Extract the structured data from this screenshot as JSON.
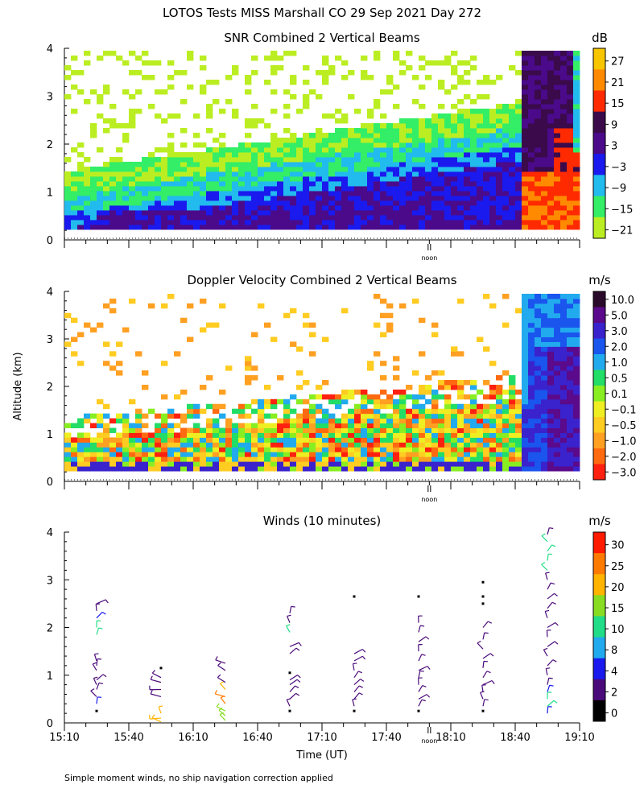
{
  "main_title": "LOTOS Tests MISS Marshall CO  29 Sep 2021 Day 272",
  "footer_note": "Simple moment winds, no ship navigation correction applied",
  "noon_label": "noon",
  "chart_data": [
    {
      "type": "heatmap",
      "title": "SNR Combined 2 Vertical Beams",
      "unit_label": "dB",
      "ylabel": "",
      "ylim": [
        0,
        4
      ],
      "y_ticks": [
        "0",
        "1",
        "2",
        "3",
        "4"
      ],
      "colorbar": {
        "labels": [
          "27",
          "21",
          "15",
          "9",
          "3",
          "−3",
          "−9",
          "−15",
          "−21"
        ],
        "colors": [
          "#f7c600",
          "#ff8a00",
          "#ff2a00",
          "#3a0a4a",
          "#4a0a8a",
          "#1a1aee",
          "#22bbee",
          "#33ee66",
          "#bbee22"
        ]
      },
      "field": "snr"
    },
    {
      "type": "heatmap",
      "title": "Doppler Velocity Combined 2 Vertical Beams",
      "unit_label": "m/s",
      "ylabel": "Altitude (km)",
      "ylim": [
        0,
        4
      ],
      "y_ticks": [
        "0",
        "1",
        "2",
        "3",
        "4"
      ],
      "colorbar": {
        "labels": [
          "10.0",
          "5.0",
          "3.0",
          "2.0",
          "1.0",
          "0.5",
          "0.1",
          "−0.1",
          "−0.5",
          "−1.0",
          "−2.0",
          "−3.0"
        ],
        "colors": [
          "#2a0a2a",
          "#5a0a8a",
          "#3a22cc",
          "#1a55ee",
          "#22aaee",
          "#22dd66",
          "#88ee22",
          "#eeee22",
          "#ffcc22",
          "#ffa022",
          "#ff6a10",
          "#ff2010"
        ]
      },
      "field": "velocity"
    },
    {
      "type": "scatter",
      "title": "Winds (10 minutes)",
      "unit_label": "m/s",
      "xlabel": "Time (UT)",
      "ylim": [
        0,
        4
      ],
      "y_ticks": [
        "0",
        "1",
        "2",
        "3",
        "4"
      ],
      "x_ticks": [
        "15:10",
        "15:40",
        "16:10",
        "16:40",
        "17:10",
        "17:40",
        "18:10",
        "18:40",
        "19:10"
      ],
      "x_range_minutes": [
        910,
        1150
      ],
      "noon_minute": 1080,
      "colorbar": {
        "labels": [
          "30",
          "25",
          "20",
          "15",
          "10",
          "8",
          "4",
          "2",
          "0"
        ],
        "colors": [
          "#ff1a00",
          "#ff7a00",
          "#ffb400",
          "#88dd22",
          "#22dd88",
          "#22aaee",
          "#1a1aee",
          "#4a0a7a",
          "#000000"
        ]
      },
      "profile_times": [
        "15:25",
        "15:55",
        "16:25",
        "16:55",
        "17:25",
        "17:55",
        "18:25",
        "18:55"
      ],
      "profiles": [
        {
          "time_min": 925,
          "points": [
            {
              "alt": 0.25,
              "speed": 0
            },
            {
              "alt": 0.4,
              "speed": 4
            },
            {
              "alt": 0.55,
              "speed": 3
            },
            {
              "alt": 0.7,
              "speed": 3
            },
            {
              "alt": 0.8,
              "speed": 3
            },
            {
              "alt": 0.9,
              "speed": 3
            },
            {
              "alt": 1.1,
              "speed": 3
            },
            {
              "alt": 1.2,
              "speed": 3
            },
            {
              "alt": 1.3,
              "speed": 3
            },
            {
              "alt": 1.85,
              "speed": 10
            },
            {
              "alt": 2.0,
              "speed": 10
            },
            {
              "alt": 2.2,
              "speed": 4
            },
            {
              "alt": 2.35,
              "speed": 3
            },
            {
              "alt": 2.5,
              "speed": 3
            }
          ]
        },
        {
          "time_min": 955,
          "points": [
            {
              "alt": 0.02,
              "speed": 22
            },
            {
              "alt": 0.1,
              "speed": 22
            },
            {
              "alt": 0.2,
              "speed": 22
            },
            {
              "alt": 0.55,
              "speed": 3
            },
            {
              "alt": 0.7,
              "speed": 3
            },
            {
              "alt": 0.85,
              "speed": 3
            },
            {
              "alt": 0.95,
              "speed": 3
            },
            {
              "alt": 1.15,
              "speed": 0
            }
          ]
        },
        {
          "time_min": 985,
          "points": [
            {
              "alt": 0.05,
              "speed": 15
            },
            {
              "alt": 0.15,
              "speed": 15
            },
            {
              "alt": 0.25,
              "speed": 15
            },
            {
              "alt": 0.4,
              "speed": 25
            },
            {
              "alt": 0.55,
              "speed": 25
            },
            {
              "alt": 0.7,
              "speed": 22
            },
            {
              "alt": 0.85,
              "speed": 3
            },
            {
              "alt": 1.1,
              "speed": 3
            },
            {
              "alt": 1.25,
              "speed": 3
            }
          ]
        },
        {
          "time_min": 1015,
          "points": [
            {
              "alt": 0.25,
              "speed": 0
            },
            {
              "alt": 0.35,
              "speed": 3
            },
            {
              "alt": 0.5,
              "speed": 3
            },
            {
              "alt": 0.65,
              "speed": 3
            },
            {
              "alt": 0.8,
              "speed": 3
            },
            {
              "alt": 0.9,
              "speed": 3
            },
            {
              "alt": 1.05,
              "speed": 0
            },
            {
              "alt": 1.45,
              "speed": 3
            },
            {
              "alt": 1.6,
              "speed": 3
            },
            {
              "alt": 1.9,
              "speed": 10
            },
            {
              "alt": 2.1,
              "speed": 3
            },
            {
              "alt": 2.3,
              "speed": 3
            }
          ]
        },
        {
          "time_min": 1045,
          "points": [
            {
              "alt": 0.25,
              "speed": 0
            },
            {
              "alt": 0.35,
              "speed": 3
            },
            {
              "alt": 0.5,
              "speed": 3
            },
            {
              "alt": 0.65,
              "speed": 3
            },
            {
              "alt": 0.8,
              "speed": 3
            },
            {
              "alt": 0.95,
              "speed": 3
            },
            {
              "alt": 1.1,
              "speed": 3
            },
            {
              "alt": 1.3,
              "speed": 3
            },
            {
              "alt": 1.45,
              "speed": 3
            },
            {
              "alt": 2.65,
              "speed": 0
            }
          ]
        },
        {
          "time_min": 1075,
          "points": [
            {
              "alt": 0.25,
              "speed": 0
            },
            {
              "alt": 0.35,
              "speed": 3
            },
            {
              "alt": 0.5,
              "speed": 3
            },
            {
              "alt": 0.65,
              "speed": 3
            },
            {
              "alt": 0.8,
              "speed": 3
            },
            {
              "alt": 0.95,
              "speed": 3
            },
            {
              "alt": 1.1,
              "speed": 3
            },
            {
              "alt": 1.3,
              "speed": 3
            },
            {
              "alt": 1.5,
              "speed": 3
            },
            {
              "alt": 1.7,
              "speed": 3
            },
            {
              "alt": 1.9,
              "speed": 3
            },
            {
              "alt": 2.1,
              "speed": 3
            },
            {
              "alt": 2.65,
              "speed": 0
            }
          ]
        },
        {
          "time_min": 1105,
          "points": [
            {
              "alt": 0.25,
              "speed": 0
            },
            {
              "alt": 0.35,
              "speed": 3
            },
            {
              "alt": 0.5,
              "speed": 3
            },
            {
              "alt": 0.65,
              "speed": 3
            },
            {
              "alt": 0.8,
              "speed": 3
            },
            {
              "alt": 0.95,
              "speed": 3
            },
            {
              "alt": 1.15,
              "speed": 3
            },
            {
              "alt": 1.35,
              "speed": 3
            },
            {
              "alt": 1.55,
              "speed": 3
            },
            {
              "alt": 1.75,
              "speed": 3
            },
            {
              "alt": 2.0,
              "speed": 3
            },
            {
              "alt": 2.5,
              "speed": 0
            },
            {
              "alt": 2.65,
              "speed": 0
            },
            {
              "alt": 2.95,
              "speed": 0
            }
          ]
        },
        {
          "time_min": 1135,
          "points": [
            {
              "alt": 0.2,
              "speed": 6
            },
            {
              "alt": 0.35,
              "speed": 10
            },
            {
              "alt": 0.5,
              "speed": 10
            },
            {
              "alt": 0.65,
              "speed": 6
            },
            {
              "alt": 0.8,
              "speed": 3
            },
            {
              "alt": 1.0,
              "speed": 3
            },
            {
              "alt": 1.2,
              "speed": 3
            },
            {
              "alt": 1.4,
              "speed": 3
            },
            {
              "alt": 1.6,
              "speed": 3
            },
            {
              "alt": 1.8,
              "speed": 3
            },
            {
              "alt": 2.0,
              "speed": 3
            },
            {
              "alt": 2.2,
              "speed": 3
            },
            {
              "alt": 2.4,
              "speed": 3
            },
            {
              "alt": 2.6,
              "speed": 3
            },
            {
              "alt": 2.8,
              "speed": 3
            },
            {
              "alt": 3.0,
              "speed": 3
            },
            {
              "alt": 3.2,
              "speed": 10
            },
            {
              "alt": 3.4,
              "speed": 10
            },
            {
              "alt": 3.6,
              "speed": 10
            },
            {
              "alt": 3.8,
              "speed": 10
            },
            {
              "alt": 3.95,
              "speed": 3
            }
          ]
        }
      ]
    }
  ]
}
